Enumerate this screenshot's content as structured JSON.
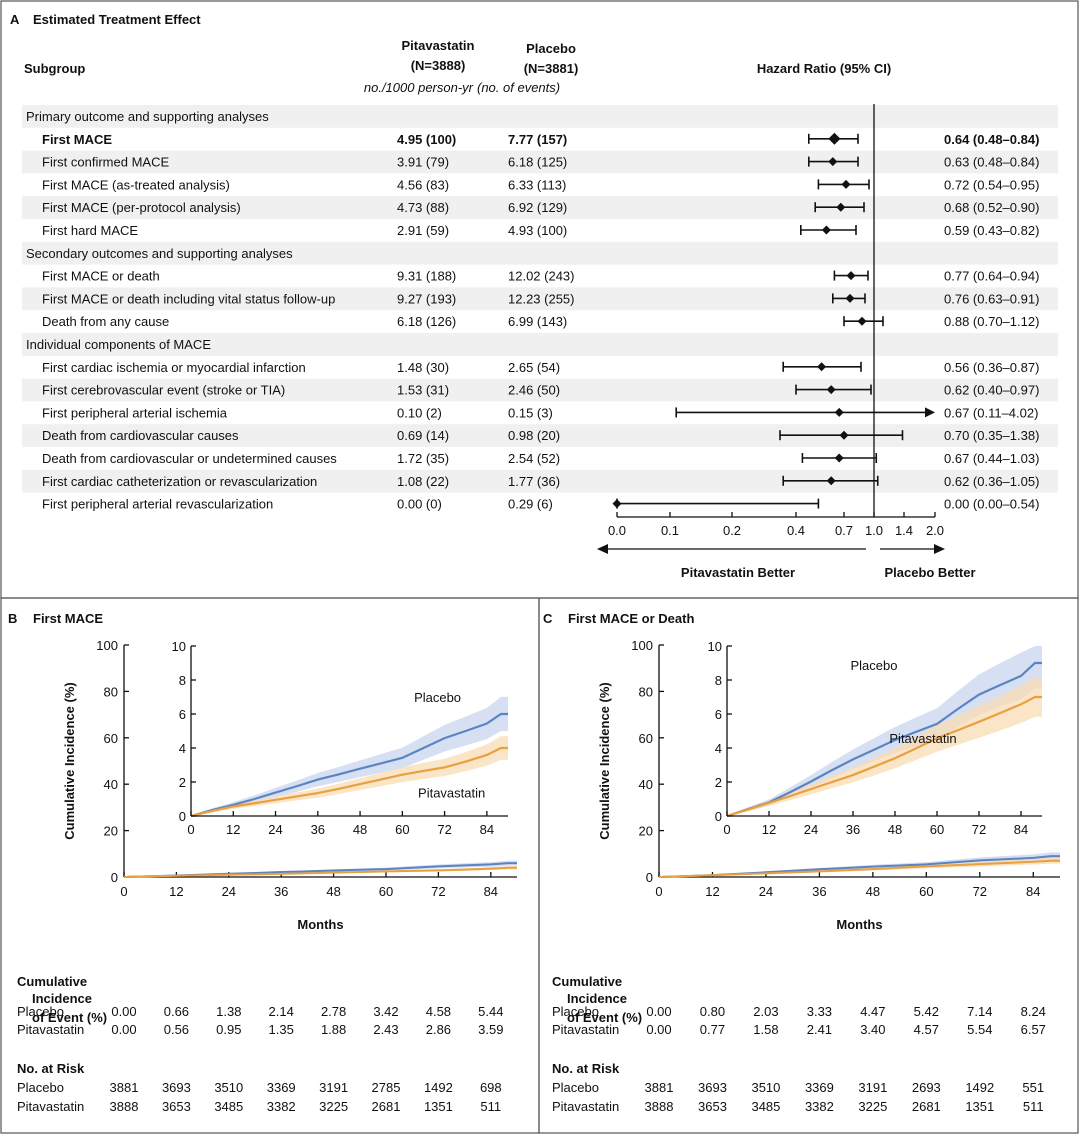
{
  "panelA": {
    "letter": "A",
    "title": "Estimated Treatment Effect",
    "col_subgroup": "Subgroup",
    "col_pitav_name": "Pitavastatin",
    "col_pitav_n": "(N=3888)",
    "col_placebo_name": "Placebo",
    "col_placebo_n": "(N=3881)",
    "col_units_a": "no./1000 person-yr",
    "col_units_b": "(no. of events)",
    "col_hr": "Hazard Ratio (95% CI)",
    "left_arrow_label": "Pitavastatin Better",
    "right_arrow_label": "Placebo Better"
  },
  "chart_data": [
    {
      "type": "forest",
      "x_scale": "log-like (0 to 2.0)",
      "xticks": [
        "0.0",
        "0.1",
        "0.2",
        "0.4",
        "0.7",
        "1.0",
        "1.4",
        "2.0"
      ],
      "reference_line": 1.0,
      "rows": [
        {
          "kind": "header",
          "label": "Primary outcome and supporting analyses"
        },
        {
          "kind": "row",
          "label": "First MACE",
          "bold": true,
          "pitav": "4.95 (100)",
          "placebo": "7.77 (157)",
          "hr": 0.64,
          "lo": 0.48,
          "hi": 0.84,
          "hr_text": "0.64 (0.48–0.84)"
        },
        {
          "kind": "row",
          "label": "First confirmed MACE",
          "pitav": "3.91 (79)",
          "placebo": "6.18 (125)",
          "hr": 0.63,
          "lo": 0.48,
          "hi": 0.84,
          "hr_text": "0.63 (0.48–0.84)"
        },
        {
          "kind": "row",
          "label": "First MACE (as-treated analysis)",
          "pitav": "4.56 (83)",
          "placebo": "6.33 (113)",
          "hr": 0.72,
          "lo": 0.54,
          "hi": 0.95,
          "hr_text": "0.72 (0.54–0.95)"
        },
        {
          "kind": "row",
          "label": "First MACE (per-protocol analysis)",
          "pitav": "4.73 (88)",
          "placebo": "6.92 (129)",
          "hr": 0.68,
          "lo": 0.52,
          "hi": 0.9,
          "hr_text": "0.68 (0.52–0.90)"
        },
        {
          "kind": "row",
          "label": "First hard MACE",
          "pitav": "2.91 (59)",
          "placebo": "4.93 (100)",
          "hr": 0.59,
          "lo": 0.43,
          "hi": 0.82,
          "hr_text": "0.59 (0.43–0.82)"
        },
        {
          "kind": "header",
          "label": "Secondary outcomes and supporting analyses"
        },
        {
          "kind": "row",
          "label": "First MACE or death",
          "pitav": "9.31 (188)",
          "placebo": "12.02 (243)",
          "hr": 0.77,
          "lo": 0.64,
          "hi": 0.94,
          "hr_text": "0.77 (0.64–0.94)"
        },
        {
          "kind": "row",
          "label": "First MACE or death including vital status follow-up",
          "pitav": "9.27 (193)",
          "placebo": "12.23 (255)",
          "hr": 0.76,
          "lo": 0.63,
          "hi": 0.91,
          "hr_text": "0.76 (0.63–0.91)"
        },
        {
          "kind": "row",
          "label": "Death from any cause",
          "pitav": "6.18 (126)",
          "placebo": "6.99 (143)",
          "hr": 0.88,
          "lo": 0.7,
          "hi": 1.12,
          "hr_text": "0.88 (0.70–1.12)"
        },
        {
          "kind": "header",
          "label": "Individual components of MACE"
        },
        {
          "kind": "row",
          "label": "First cardiac ischemia or myocardial infarction",
          "pitav": "1.48 (30)",
          "placebo": "2.65 (54)",
          "hr": 0.56,
          "lo": 0.36,
          "hi": 0.87,
          "hr_text": "0.56 (0.36–0.87)"
        },
        {
          "kind": "row",
          "label": "First cerebrovascular event (stroke or TIA)",
          "pitav": "1.53 (31)",
          "placebo": "2.46 (50)",
          "hr": 0.62,
          "lo": 0.4,
          "hi": 0.97,
          "hr_text": "0.62 (0.40–0.97)"
        },
        {
          "kind": "row",
          "label": "First peripheral arterial ischemia",
          "pitav": "0.10 (2)",
          "placebo": "0.15 (3)",
          "hr": 0.67,
          "lo": 0.11,
          "hi": 4.02,
          "arrow_right": true,
          "hr_text": "0.67 (0.11–4.02)"
        },
        {
          "kind": "row",
          "label": "Death from cardiovascular causes",
          "pitav": "0.69 (14)",
          "placebo": "0.98 (20)",
          "hr": 0.7,
          "lo": 0.35,
          "hi": 1.38,
          "hr_text": "0.70 (0.35–1.38)"
        },
        {
          "kind": "row",
          "label": "Death from cardiovascular or undetermined causes",
          "pitav": "1.72 (35)",
          "placebo": "2.54 (52)",
          "hr": 0.67,
          "lo": 0.44,
          "hi": 1.03,
          "hr_text": "0.67 (0.44–1.03)"
        },
        {
          "kind": "row",
          "label": "First cardiac catheterization or revascularization",
          "pitav": "1.08 (22)",
          "placebo": "1.77 (36)",
          "hr": 0.62,
          "lo": 0.36,
          "hi": 1.05,
          "hr_text": "0.62 (0.36–1.05)"
        },
        {
          "kind": "row",
          "label": "First peripheral arterial revascularization",
          "pitav": "0.00 (0)",
          "placebo": "0.29 (6)",
          "hr": 0.0,
          "lo": 0.0,
          "hi": 0.54,
          "hr_text": "0.00 (0.00–0.54)"
        }
      ]
    },
    {
      "type": "line",
      "id": "B",
      "letter": "B",
      "title": "First MACE",
      "xlabel": "Months",
      "ylabel": "Cumulative Incidence (%)",
      "xlim": [
        0,
        90
      ],
      "ylim": [
        0,
        100
      ],
      "xticks": [
        0,
        12,
        24,
        36,
        48,
        60,
        72,
        84
      ],
      "yticks": [
        0,
        20,
        40,
        60,
        80,
        100
      ],
      "inset": {
        "xlim": [
          0,
          90
        ],
        "ylim": [
          0,
          10
        ],
        "xticks": [
          0,
          12,
          24,
          36,
          48,
          60,
          72,
          84
        ],
        "yticks": [
          0,
          2,
          4,
          6,
          8,
          10
        ]
      },
      "series": [
        {
          "name": "Placebo",
          "color": "#5b84c4",
          "band": "#c9d6ee",
          "x": [
            0,
            6,
            12,
            18,
            24,
            30,
            36,
            42,
            48,
            54,
            60,
            66,
            72,
            78,
            84,
            88,
            90
          ],
          "y": [
            0,
            0.35,
            0.66,
            1.0,
            1.38,
            1.75,
            2.14,
            2.45,
            2.78,
            3.1,
            3.42,
            4.0,
            4.58,
            5.0,
            5.44,
            6.0,
            6.0
          ]
        },
        {
          "name": "Pitavastatin",
          "color": "#e9a040",
          "band": "#f8dcb4",
          "x": [
            0,
            6,
            12,
            18,
            24,
            30,
            36,
            42,
            48,
            54,
            60,
            66,
            72,
            78,
            84,
            88,
            90
          ],
          "y": [
            0,
            0.3,
            0.56,
            0.75,
            0.95,
            1.15,
            1.35,
            1.6,
            1.88,
            2.15,
            2.43,
            2.65,
            2.86,
            3.2,
            3.59,
            4.0,
            4.0
          ]
        }
      ],
      "label_pos": {
        "Placebo": [
          70,
          6.7
        ],
        "Pitavastatin": [
          74,
          1.1
        ]
      },
      "incidence_title": [
        "Cumulative",
        "Incidence",
        "of Event (%)"
      ],
      "incidence": {
        "Placebo": [
          "0.00",
          "0.66",
          "1.38",
          "2.14",
          "2.78",
          "3.42",
          "4.58",
          "5.44"
        ],
        "Pitavastatin": [
          "0.00",
          "0.56",
          "0.95",
          "1.35",
          "1.88",
          "2.43",
          "2.86",
          "3.59"
        ]
      },
      "risk_title": "No. at Risk",
      "risk": {
        "Placebo": [
          "3881",
          "3693",
          "3510",
          "3369",
          "3191",
          "2785",
          "1492",
          "698"
        ],
        "Pitavastatin": [
          "3888",
          "3653",
          "3485",
          "3382",
          "3225",
          "2681",
          "1351",
          "511"
        ]
      }
    },
    {
      "type": "line",
      "id": "C",
      "letter": "C",
      "title": "First MACE or Death",
      "xlabel": "Months",
      "ylabel": "Cumulative Incidence (%)",
      "xlim": [
        0,
        90
      ],
      "ylim": [
        0,
        100
      ],
      "xticks": [
        0,
        12,
        24,
        36,
        48,
        60,
        72,
        84
      ],
      "yticks": [
        0,
        20,
        40,
        60,
        80,
        100
      ],
      "inset": {
        "xlim": [
          0,
          90
        ],
        "ylim": [
          0,
          10
        ],
        "xticks": [
          0,
          12,
          24,
          36,
          48,
          60,
          72,
          84
        ],
        "yticks": [
          0,
          2,
          4,
          6,
          8,
          10
        ]
      },
      "series": [
        {
          "name": "Placebo",
          "color": "#5b84c4",
          "band": "#c9d6ee",
          "x": [
            0,
            6,
            12,
            18,
            24,
            30,
            36,
            42,
            48,
            54,
            60,
            66,
            72,
            78,
            84,
            88,
            90
          ],
          "y": [
            0,
            0.4,
            0.8,
            1.4,
            2.03,
            2.7,
            3.33,
            3.9,
            4.47,
            4.95,
            5.42,
            6.3,
            7.14,
            7.7,
            8.24,
            9.0,
            9.0
          ]
        },
        {
          "name": "Pitavastatin",
          "color": "#e9a040",
          "band": "#f8dcb4",
          "x": [
            0,
            6,
            12,
            18,
            24,
            30,
            36,
            42,
            48,
            54,
            60,
            66,
            72,
            78,
            84,
            88,
            90
          ],
          "y": [
            0,
            0.38,
            0.77,
            1.17,
            1.58,
            2.0,
            2.41,
            2.9,
            3.4,
            3.98,
            4.57,
            5.05,
            5.54,
            6.05,
            6.57,
            7.0,
            7.0
          ]
        }
      ],
      "label_pos": {
        "Placebo": [
          42,
          8.6
        ],
        "Pitavastatin": [
          56,
          4.3
        ]
      },
      "incidence_title": [
        "Cumulative",
        "Incidence",
        "of Event (%)"
      ],
      "incidence": {
        "Placebo": [
          "0.00",
          "0.80",
          "2.03",
          "3.33",
          "4.47",
          "5.42",
          "7.14",
          "8.24"
        ],
        "Pitavastatin": [
          "0.00",
          "0.77",
          "1.58",
          "2.41",
          "3.40",
          "4.57",
          "5.54",
          "6.57"
        ]
      },
      "risk_title": "No. at Risk",
      "risk": {
        "Placebo": [
          "3881",
          "3693",
          "3510",
          "3369",
          "3191",
          "2693",
          "1492",
          "551"
        ],
        "Pitavastatin": [
          "3888",
          "3653",
          "3485",
          "3382",
          "3225",
          "2681",
          "1351",
          "511"
        ]
      }
    }
  ]
}
